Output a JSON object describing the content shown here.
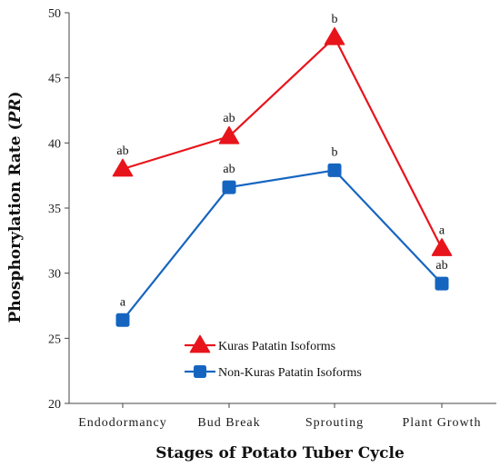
{
  "chart_data": {
    "type": "line",
    "categories": [
      "Endodormancy",
      "Bud Break",
      "Sprouting",
      "Plant Growth"
    ],
    "xlabel": "Stages of Potato Tuber Cycle",
    "ylabel_prefix": "Phosphorylation Rate (",
    "ylabel_italic": "PR",
    "ylabel_suffix": ")",
    "ylim": [
      20,
      50
    ],
    "yticks": [
      "20",
      "25",
      "30",
      "35",
      "40",
      "45",
      "50"
    ],
    "grid": false,
    "legend_position": "lower-center",
    "series": [
      {
        "name": "Kuras Patatin Isoforms",
        "color": "#e8141b",
        "marker": "triangle",
        "values": [
          38.0,
          40.5,
          48.1,
          31.9
        ],
        "labels": [
          "ab",
          "ab",
          "b",
          "a"
        ]
      },
      {
        "name": "Non-Kuras Patatin Isoforms",
        "color": "#1565c0",
        "marker": "square",
        "values": [
          26.4,
          36.6,
          37.9,
          29.2
        ],
        "labels": [
          "a",
          "ab",
          "b",
          "ab"
        ]
      }
    ]
  }
}
